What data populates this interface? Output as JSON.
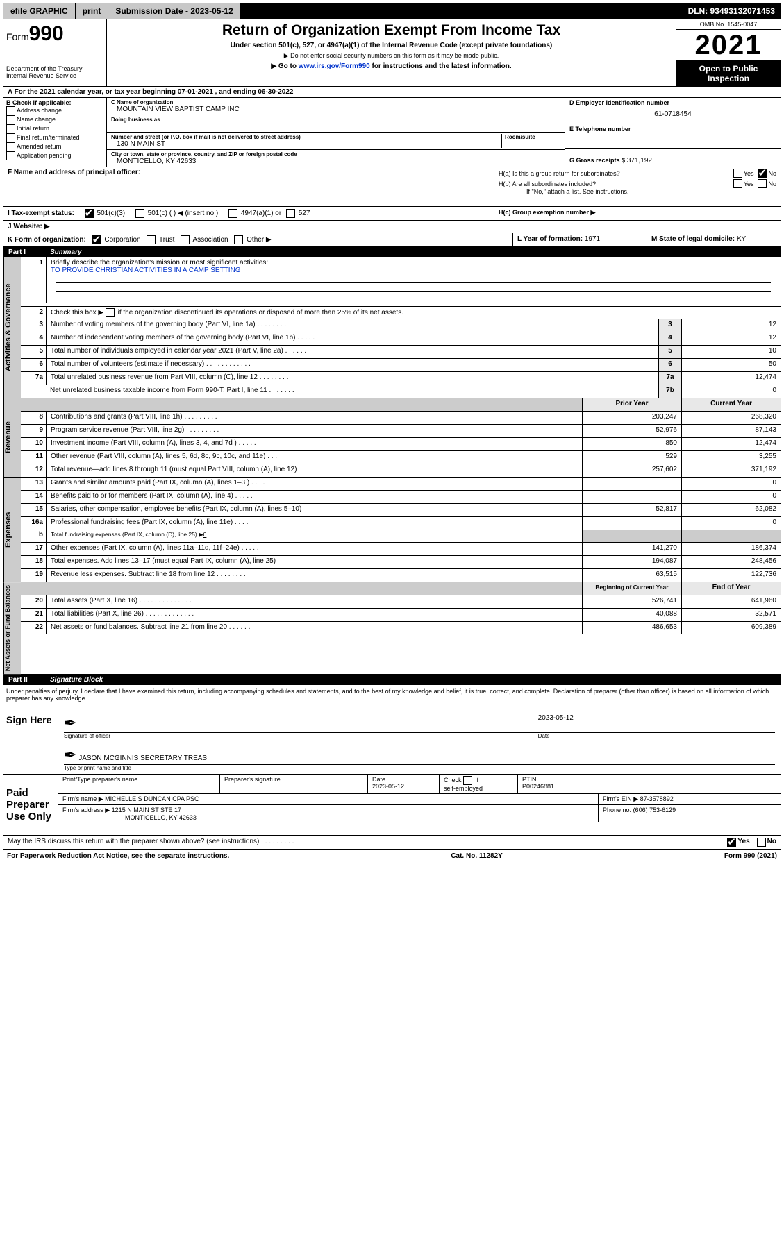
{
  "topbar": {
    "efile": "efile GRAPHIC",
    "print": "print",
    "subdate_lbl": "Submission Date - 2023-05-12",
    "dln": "DLN: 93493132071453"
  },
  "header": {
    "form": "Form",
    "num": "990",
    "dept1": "Department of the Treasury",
    "dept2": "Internal Revenue Service",
    "title": "Return of Organization Exempt From Income Tax",
    "sub1": "Under section 501(c), 527, or 4947(a)(1) of the Internal Revenue Code (except private foundations)",
    "sub2": "▶ Do not enter social security numbers on this form as it may be made public.",
    "sub3_pre": "▶ Go to ",
    "sub3_link": "www.irs.gov/Form990",
    "sub3_post": " for instructions and the latest information.",
    "omb": "OMB No. 1545-0047",
    "year": "2021",
    "open": "Open to Public Inspection"
  },
  "A": {
    "text_pre": "A For the 2021 calendar year, or tax year beginning ",
    "beg": "07-01-2021",
    "mid": " , and ending ",
    "end": "06-30-2022"
  },
  "B": {
    "head": "B Check if applicable:",
    "items": [
      "Address change",
      "Name change",
      "Initial return",
      "Final return/terminated",
      "Amended return",
      "Application pending"
    ]
  },
  "C": {
    "name_lbl": "C Name of organization",
    "name": "MOUNTAIN VIEW BAPTIST CAMP INC",
    "dba_lbl": "Doing business as",
    "addr_lbl": "Number and street (or P.O. box if mail is not delivered to street address)",
    "room_lbl": "Room/suite",
    "addr": "130 N MAIN ST",
    "city_lbl": "City or town, state or province, country, and ZIP or foreign postal code",
    "city": "MONTICELLO, KY  42633"
  },
  "D": {
    "lbl": "D Employer identification number",
    "val": "61-0718454"
  },
  "E": {
    "lbl": "E Telephone number",
    "val": ""
  },
  "G": {
    "lbl": "G Gross receipts $",
    "val": "371,192"
  },
  "F": {
    "lbl": "F  Name and address of principal officer:"
  },
  "H": {
    "a": "H(a)  Is this a group return for subordinates?",
    "b": "H(b)  Are all subordinates included?",
    "b_note": "If \"No,\" attach a list. See instructions.",
    "c": "H(c)  Group exemption number ▶",
    "yes": "Yes",
    "no": "No"
  },
  "I": {
    "lbl": "I    Tax-exempt status:",
    "o1": "501(c)(3)",
    "o2": "501(c) (  ) ◀ (insert no.)",
    "o3": "4947(a)(1) or",
    "o4": "527"
  },
  "J": {
    "lbl": "J    Website: ▶"
  },
  "K": {
    "lbl": "K Form of organization:",
    "o1": "Corporation",
    "o2": "Trust",
    "o3": "Association",
    "o4": "Other ▶"
  },
  "L": {
    "lbl": "L Year of formation:",
    "val": "1971"
  },
  "M": {
    "lbl": "M State of legal domicile:",
    "val": "KY"
  },
  "part1": {
    "num": "Part I",
    "name": "Summary"
  },
  "gov": {
    "tab": "Activities & Governance",
    "l1_lbl": "Briefly describe the organization's mission or most significant activities:",
    "l1_val": "TO PROVIDE CHRISTIAN ACTIVITIES IN A CAMP SETTING",
    "l2": "Check this box ▶   if the organization discontinued its operations or disposed of more than 25% of its net assets.",
    "l3": "Number of voting members of the governing body (Part VI, line 1a)   .    .    .    .    .    .    .    .",
    "l3v": "12",
    "l4": "Number of independent voting members of the governing body (Part VI, line 1b)   .    .    .    .    .",
    "l4v": "12",
    "l5": "Total number of individuals employed in calendar year 2021 (Part V, line 2a)   .    .    .    .    .    .",
    "l5v": "10",
    "l6": "Total number of volunteers (estimate if necessary)   .    .    .    .    .    .    .    .    .    .    .    .",
    "l6v": "50",
    "l7a": "Total unrelated business revenue from Part VIII, column (C), line 12   .    .    .    .    .    .    .    .",
    "l7av": "12,474",
    "l7b": "Net unrelated business taxable income from Form 990-T, Part I, line 11   .    .    .    .    .    .    .",
    "l7bv": "0"
  },
  "rev": {
    "tab": "Revenue",
    "prior": "Prior Year",
    "curr": "Current Year",
    "rows": [
      {
        "n": "8",
        "d": "Contributions and grants (Part VIII, line 1h)   .    .    .    .    .    .    .    .    .",
        "p": "203,247",
        "c": "268,320"
      },
      {
        "n": "9",
        "d": "Program service revenue (Part VIII, line 2g)   .    .    .    .    .    .    .    .    .",
        "p": "52,976",
        "c": "87,143"
      },
      {
        "n": "10",
        "d": "Investment income (Part VIII, column (A), lines 3, 4, and 7d )   .    .    .    .    .",
        "p": "850",
        "c": "12,474"
      },
      {
        "n": "11",
        "d": "Other revenue (Part VIII, column (A), lines 5, 6d, 8c, 9c, 10c, and 11e)   .    .    .",
        "p": "529",
        "c": "3,255"
      },
      {
        "n": "12",
        "d": "Total revenue—add lines 8 through 11 (must equal Part VIII, column (A), line 12)",
        "p": "257,602",
        "c": "371,192"
      }
    ]
  },
  "exp": {
    "tab": "Expenses",
    "rows": [
      {
        "n": "13",
        "d": "Grants and similar amounts paid (Part IX, column (A), lines 1–3 )   .    .    .    .",
        "p": "",
        "c": "0"
      },
      {
        "n": "14",
        "d": "Benefits paid to or for members (Part IX, column (A), line 4)   .    .    .    .    .",
        "p": "",
        "c": "0"
      },
      {
        "n": "15",
        "d": "Salaries, other compensation, employee benefits (Part IX, column (A), lines 5–10)",
        "p": "52,817",
        "c": "62,082"
      },
      {
        "n": "16a",
        "d": "Professional fundraising fees (Part IX, column (A), line 11e)   .    .    .    .    .",
        "p": "",
        "c": "0"
      }
    ],
    "l16b_pre": "Total fundraising expenses (Part IX, column (D), line 25) ▶",
    "l16b_val": "0",
    "rows2": [
      {
        "n": "17",
        "d": "Other expenses (Part IX, column (A), lines 11a–11d, 11f–24e)   .    .    .    .    .",
        "p": "141,270",
        "c": "186,374"
      },
      {
        "n": "18",
        "d": "Total expenses. Add lines 13–17 (must equal Part IX, column (A), line 25)",
        "p": "194,087",
        "c": "248,456"
      },
      {
        "n": "19",
        "d": "Revenue less expenses. Subtract line 18 from line 12   .    .    .    .    .    .    .    .",
        "p": "63,515",
        "c": "122,736"
      }
    ]
  },
  "net": {
    "tab": "Net Assets or Fund Balances",
    "beg": "Beginning of Current Year",
    "end": "End of Year",
    "rows": [
      {
        "n": "20",
        "d": "Total assets (Part X, line 16)   .    .    .    .    .    .    .    .    .    .    .    .    .    .",
        "p": "526,741",
        "c": "641,960"
      },
      {
        "n": "21",
        "d": "Total liabilities (Part X, line 26)   .    .    .    .    .    .    .    .    .    .    .    .    .",
        "p": "40,088",
        "c": "32,571"
      },
      {
        "n": "22",
        "d": "Net assets or fund balances. Subtract line 21 from line 20   .    .    .    .    .    .",
        "p": "486,653",
        "c": "609,389"
      }
    ]
  },
  "part2": {
    "num": "Part II",
    "name": "Signature Block"
  },
  "sig": {
    "decl": "Under penalties of perjury, I declare that I have examined this return, including accompanying schedules and statements, and to the best of my knowledge and belief, it is true, correct, and complete. Declaration of preparer (other than officer) is based on all information of which preparer has any knowledge.",
    "sign_here": "Sign Here",
    "off_lbl": "Signature of officer",
    "date_lbl": "Date",
    "date_val": "2023-05-12",
    "name": "JASON MCGINNIS  SECRETARY TREAS",
    "name_lbl": "Type or print name and title"
  },
  "paid": {
    "head": "Paid Preparer Use Only",
    "h1": "Print/Type preparer's name",
    "h2": "Preparer's signature",
    "h3": "Date",
    "h3v": "2023-05-12",
    "h4": "Check       if self-employed",
    "h5": "PTIN",
    "h5v": "P00246881",
    "firm_lbl": "Firm's name    ▶",
    "firm": "MICHELLE S DUNCAN CPA PSC",
    "ein_lbl": "Firm's EIN ▶",
    "ein": "87-3578892",
    "addr_lbl": "Firm's address ▶",
    "addr1": "1215 N MAIN ST STE 17",
    "addr2": "MONTICELLO, KY  42633",
    "phone_lbl": "Phone no.",
    "phone": "(606) 753-6129"
  },
  "bottom": {
    "q": "May the IRS discuss this return with the preparer shown above? (see instructions)   .    .    .    .    .    .    .    .    .    .",
    "yes": "Yes",
    "no": "No"
  },
  "foot": {
    "l": "For Paperwork Reduction Act Notice, see the separate instructions.",
    "m": "Cat. No. 11282Y",
    "r": "Form 990 (2021)"
  }
}
